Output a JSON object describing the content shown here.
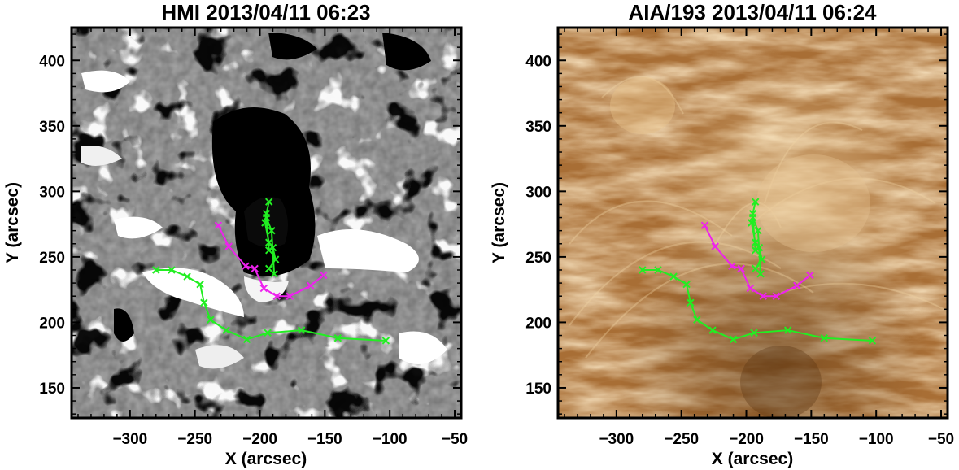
{
  "chart_data": [
    {
      "type": "scatter",
      "title": "HMI 2013/04/11 06:23",
      "xlabel": "X (arcsec)",
      "ylabel": "Y (arcsec)",
      "xlim": [
        -345,
        -45
      ],
      "ylim": [
        127,
        425
      ],
      "xticks": [
        -300,
        -250,
        -200,
        -150,
        -100,
        -50
      ],
      "yticks": [
        150,
        200,
        250,
        300,
        350,
        400
      ],
      "background": "magnetogram",
      "series": [
        {
          "color": "#22ee22",
          "x": [
            -280,
            -268,
            -256,
            -246,
            -243,
            -238,
            -226,
            -210,
            -194,
            -168,
            -140,
            -103
          ],
          "y": [
            240,
            240,
            235,
            229,
            215,
            202,
            194,
            187,
            192,
            194,
            188,
            186
          ]
        },
        {
          "color": "#ee22ee",
          "x": [
            -232,
            -224,
            -211,
            -204,
            -197,
            -187,
            -177,
            -161,
            -151
          ],
          "y": [
            274,
            258,
            243,
            241,
            226,
            220,
            220,
            228,
            236
          ]
        },
        {
          "color": "#22ee22",
          "x": [
            -193,
            -195,
            -196,
            -193,
            -190,
            -188,
            -193,
            -189,
            -191,
            -195,
            -193
          ],
          "y": [
            292,
            283,
            276,
            261,
            257,
            248,
            241,
            237,
            270,
            280,
            255
          ]
        }
      ]
    },
    {
      "type": "scatter",
      "title": "AIA/193 2013/04/11 06:24",
      "xlabel": "X (arcsec)",
      "ylabel": "Y (arcsec)",
      "xlim": [
        -345,
        -45
      ],
      "ylim": [
        127,
        425
      ],
      "xticks": [
        -300,
        -250,
        -200,
        -150,
        -100,
        -50
      ],
      "yticks": [
        150,
        200,
        250,
        300,
        350,
        400
      ],
      "background": "euv-193",
      "series": [
        {
          "color": "#22ee22",
          "x": [
            -280,
            -268,
            -256,
            -246,
            -243,
            -238,
            -226,
            -210,
            -194,
            -168,
            -140,
            -103
          ],
          "y": [
            240,
            240,
            235,
            229,
            215,
            202,
            194,
            187,
            192,
            194,
            188,
            186
          ]
        },
        {
          "color": "#ee22ee",
          "x": [
            -232,
            -224,
            -211,
            -204,
            -197,
            -187,
            -177,
            -161,
            -151
          ],
          "y": [
            274,
            258,
            243,
            241,
            226,
            220,
            220,
            228,
            236
          ]
        },
        {
          "color": "#22ee22",
          "x": [
            -193,
            -195,
            -196,
            -193,
            -190,
            -188,
            -193,
            -189,
            -191,
            -195,
            -193
          ],
          "y": [
            292,
            283,
            276,
            261,
            257,
            248,
            241,
            237,
            270,
            280,
            255
          ]
        }
      ]
    }
  ]
}
